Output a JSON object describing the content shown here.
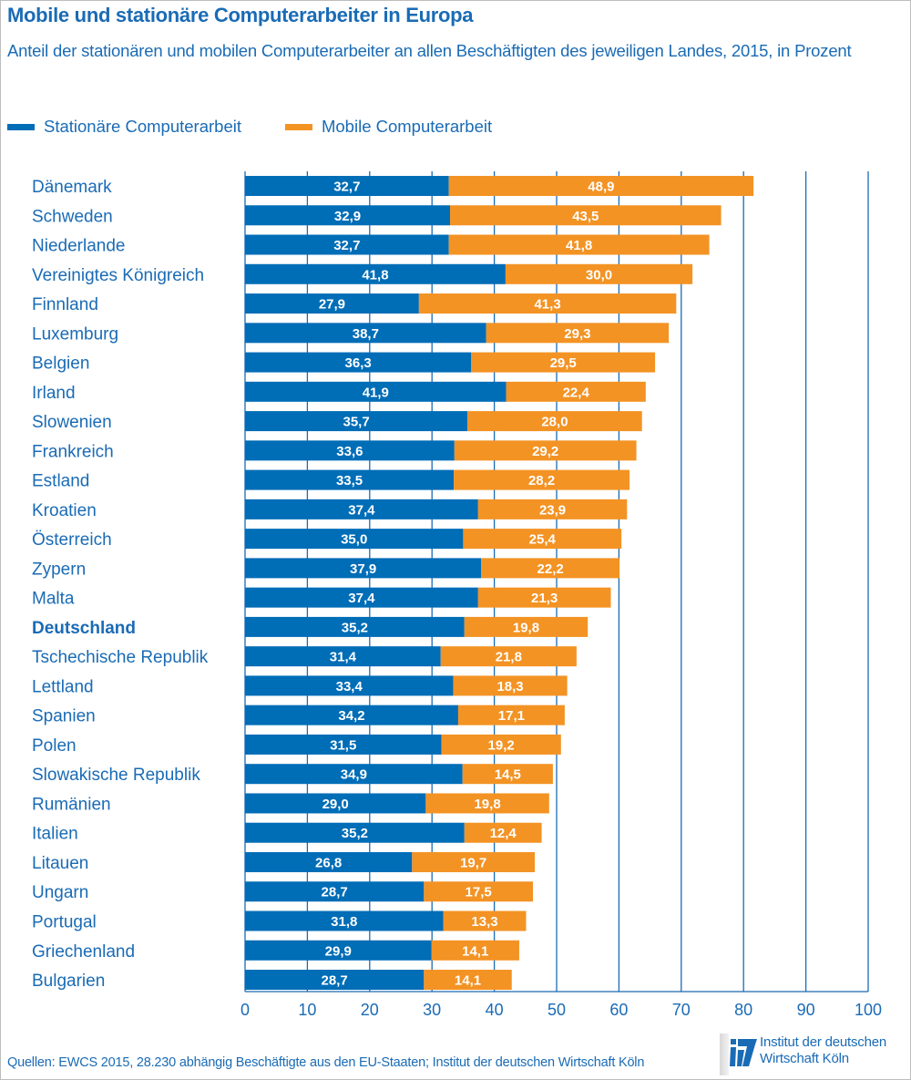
{
  "header": {
    "title": "Mobile und stationäre Computerarbeiter in Europa",
    "subtitle": "Anteil der stationären und mobilen Computerarbeiter an allen Beschäftigten des jeweiligen Landes, 2015, in Prozent"
  },
  "colors": {
    "stationary": "#006db7",
    "mobile": "#f39324",
    "text": "#1a6bb5",
    "grid": "#1a6bb5"
  },
  "footer": {
    "source": "Quellen: EWCS 2015, 28.230 abhängig Beschäftigte aus den EU-Staaten; Institut der deutschen Wirtschaft Köln",
    "logo_line1": "Institut der deutschen",
    "logo_line2": "Wirtschaft Köln",
    "logo_icon": "iw-logo-icon"
  },
  "chart_data": {
    "type": "bar",
    "orientation": "horizontal",
    "stacked": true,
    "title": "Mobile und stationäre Computerarbeiter in Europa",
    "subtitle": "Anteil der stationären und mobilen Computerarbeiter an allen Beschäftigten des jeweiligen Landes, 2015, in Prozent",
    "xlabel": "",
    "ylabel": "",
    "xlim": [
      0,
      100
    ],
    "xticks": [
      0,
      10,
      20,
      30,
      40,
      50,
      60,
      70,
      80,
      90,
      100
    ],
    "grid": true,
    "legend_position": "top-left",
    "highlight_category": "Deutschland",
    "categories": [
      "Dänemark",
      "Schweden",
      "Niederlande",
      "Vereinigtes Königreich",
      "Finnland",
      "Luxemburg",
      "Belgien",
      "Irland",
      "Slowenien",
      "Frankreich",
      "Estland",
      "Kroatien",
      "Österreich",
      "Zypern",
      "Malta",
      "Deutschland",
      "Tschechische Republik",
      "Lettland",
      "Spanien",
      "Polen",
      "Slowakische Republik",
      "Rumänien",
      "Italien",
      "Litauen",
      "Ungarn",
      "Portugal",
      "Griechenland",
      "Bulgarien"
    ],
    "series": [
      {
        "name": "Stationäre Computerarbeit",
        "color": "#006db7",
        "values": [
          32.7,
          32.9,
          32.7,
          41.8,
          27.9,
          38.7,
          36.3,
          41.9,
          35.7,
          33.6,
          33.5,
          37.4,
          35.0,
          37.9,
          37.4,
          35.2,
          31.4,
          33.4,
          34.2,
          31.5,
          34.9,
          29.0,
          35.2,
          26.8,
          28.7,
          31.8,
          29.9,
          28.7
        ],
        "labels": [
          "32,7",
          "32,9",
          "32,7",
          "41,8",
          "27,9",
          "38,7",
          "36,3",
          "41,9",
          "35,7",
          "33,6",
          "33,5",
          "37,4",
          "35,0",
          "37,9",
          "37,4",
          "35,2",
          "31,4",
          "33,4",
          "34,2",
          "31,5",
          "34,9",
          "29,0",
          "35,2",
          "26,8",
          "28,7",
          "31,8",
          "29,9",
          "28,7"
        ]
      },
      {
        "name": "Mobile Computerarbeit",
        "color": "#f39324",
        "values": [
          48.9,
          43.5,
          41.8,
          30.0,
          41.3,
          29.3,
          29.5,
          22.4,
          28.0,
          29.2,
          28.2,
          23.9,
          25.4,
          22.2,
          21.3,
          19.8,
          21.8,
          18.3,
          17.1,
          19.2,
          14.5,
          19.8,
          12.4,
          19.7,
          17.5,
          13.3,
          14.1,
          14.1
        ],
        "labels": [
          "48,9",
          "43,5",
          "41,8",
          "30,0",
          "41,3",
          "29,3",
          "29,5",
          "22,4",
          "28,0",
          "29,2",
          "28,2",
          "23,9",
          "25,4",
          "22,2",
          "21,3",
          "19,8",
          "21,8",
          "18,3",
          "17,1",
          "19,2",
          "14,5",
          "19,8",
          "12,4",
          "19,7",
          "17,5",
          "13,3",
          "14,1",
          "14,1"
        ]
      }
    ]
  }
}
